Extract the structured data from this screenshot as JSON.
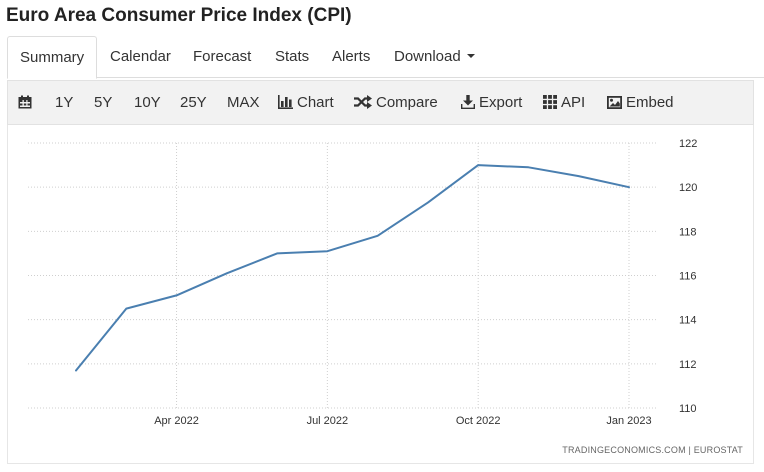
{
  "page": {
    "title": "Euro Area Consumer Price Index (CPI)"
  },
  "tabs": [
    {
      "label": "Summary",
      "active": true
    },
    {
      "label": "Calendar"
    },
    {
      "label": "Forecast"
    },
    {
      "label": "Stats"
    },
    {
      "label": "Alerts"
    },
    {
      "label": "Download"
    }
  ],
  "toolbar": {
    "calendar_icon": "calendar-icon",
    "ranges": [
      "1Y",
      "5Y",
      "10Y",
      "25Y",
      "MAX"
    ],
    "chart_label": "Chart",
    "compare_label": "Compare",
    "export_label": "Export",
    "api_label": "API",
    "embed_label": "Embed"
  },
  "source": {
    "text": "TRADINGECONOMICS.COM  |  EUROSTAT"
  },
  "colors": {
    "line": "#4a7fb0",
    "grid": "#cfcfcf"
  },
  "chart_data": {
    "type": "line",
    "title": "Euro Area Consumer Price Index (CPI)",
    "xlabel": "",
    "ylabel": "",
    "x": [
      "2022-02",
      "2022-03",
      "2022-04",
      "2022-05",
      "2022-06",
      "2022-07",
      "2022-08",
      "2022-09",
      "2022-10",
      "2022-11",
      "2022-12",
      "2023-01"
    ],
    "series": [
      {
        "name": "Euro Area CPI",
        "values": [
          111.7,
          114.5,
          115.1,
          116.1,
          117.0,
          117.1,
          117.8,
          119.3,
          121.0,
          120.9,
          120.5,
          120.0
        ]
      }
    ],
    "x_ticks": [
      {
        "label": "Apr 2022",
        "index": 2
      },
      {
        "label": "Jul 2022",
        "index": 5
      },
      {
        "label": "Oct 2022",
        "index": 8
      },
      {
        "label": "Jan 2023",
        "index": 11
      }
    ],
    "ylim": [
      110,
      122
    ],
    "y_ticks": [
      110,
      112,
      114,
      116,
      118,
      120,
      122
    ],
    "grid": true,
    "y_axis_side": "right"
  }
}
